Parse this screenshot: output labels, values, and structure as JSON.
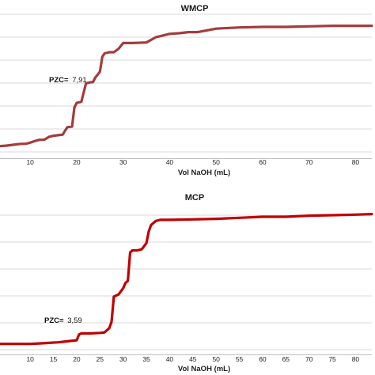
{
  "chart_data": [
    {
      "type": "line",
      "title": "WMCP",
      "xlabel": "Vol NaOH (mL)",
      "ylabel": "",
      "x_ticks": [
        10,
        20,
        30,
        40,
        50,
        60,
        70,
        80
      ],
      "xlim": [
        3.5,
        83.5
      ],
      "ylim": [
        0,
        14
      ],
      "grid": "horizontal",
      "line_color": "#a33d3d",
      "annotation": {
        "prefix": "PZC=",
        "value": "7,91"
      },
      "series": [
        {
          "x": [
            3.5,
            5,
            7,
            8,
            9,
            10,
            11,
            12,
            13,
            14,
            15,
            16,
            17,
            17.5,
            18,
            19,
            19.5,
            20,
            21,
            22,
            23,
            23.5,
            24,
            25,
            25.5,
            26,
            27,
            28,
            29,
            30,
            32,
            35,
            37,
            38,
            39,
            40,
            42,
            44,
            46,
            48,
            50,
            55,
            60,
            65,
            70,
            75,
            80,
            83.5
          ],
          "y": [
            1.55,
            1.6,
            1.7,
            1.75,
            1.75,
            1.85,
            2.0,
            2.1,
            2.1,
            2.35,
            2.45,
            2.5,
            2.55,
            2.9,
            3.2,
            3.25,
            4.9,
            5.3,
            5.4,
            7.0,
            7.1,
            7.1,
            7.5,
            8.0,
            9.3,
            9.6,
            9.7,
            9.7,
            10.0,
            10.5,
            10.5,
            10.55,
            11.0,
            11.1,
            11.2,
            11.3,
            11.35,
            11.45,
            11.45,
            11.6,
            11.75,
            11.85,
            11.9,
            11.9,
            11.95,
            12.0,
            12.0,
            12.0
          ]
        }
      ]
    },
    {
      "type": "line",
      "title": "MCP",
      "xlabel": "Vol NaOH (mL)",
      "ylabel": "",
      "x_ticks": [
        10,
        15,
        20,
        25,
        30,
        35,
        40,
        45,
        50,
        55,
        60,
        65,
        70,
        75,
        80
      ],
      "xlim": [
        3.5,
        83.5
      ],
      "ylim": [
        0,
        14
      ],
      "grid": "horizontal",
      "line_color": "#c00000",
      "annotation": {
        "prefix": "PZC=",
        "value": "3,59"
      },
      "series": [
        {
          "x": [
            3.5,
            5,
            8,
            10,
            12,
            14,
            16,
            18,
            20,
            20.5,
            21,
            23,
            25,
            26,
            27,
            27.5,
            28,
            29,
            30,
            30.5,
            31,
            31.5,
            32,
            33,
            34,
            35,
            35.5,
            36,
            36.5,
            37,
            38,
            40,
            45,
            50,
            55,
            60,
            65,
            70,
            75,
            80,
            83.5
          ],
          "y": [
            1.5,
            1.5,
            1.5,
            1.5,
            1.55,
            1.6,
            1.65,
            1.75,
            1.85,
            2.4,
            2.5,
            2.5,
            2.55,
            2.6,
            3.0,
            3.6,
            6.0,
            6.2,
            6.8,
            7.3,
            7.5,
            10.2,
            10.4,
            10.4,
            10.5,
            11.1,
            12.2,
            12.8,
            13.0,
            13.2,
            13.3,
            13.3,
            13.35,
            13.4,
            13.5,
            13.6,
            13.6,
            13.7,
            13.75,
            13.8,
            13.85
          ]
        }
      ]
    }
  ]
}
